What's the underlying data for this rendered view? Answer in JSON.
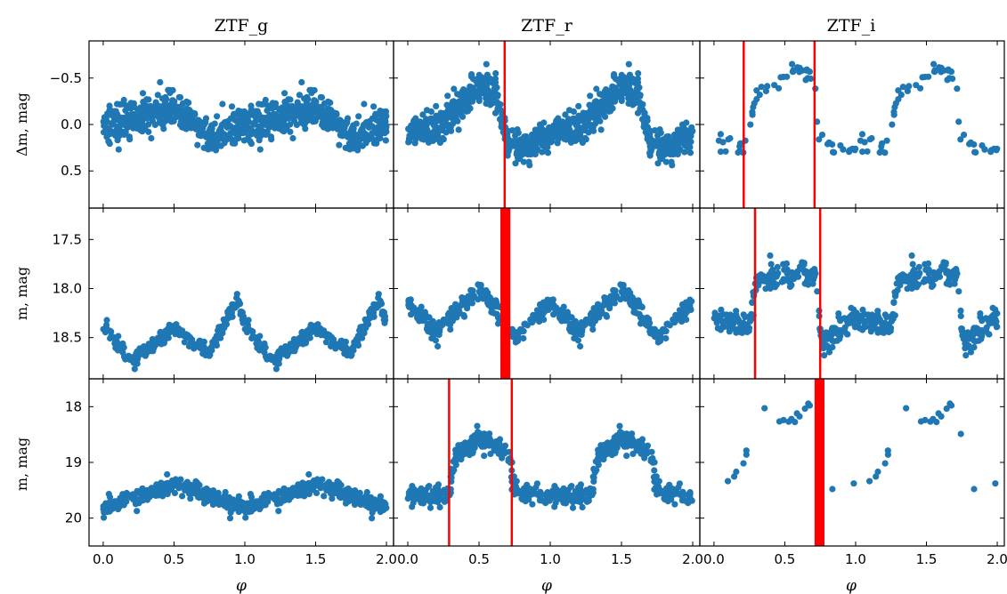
{
  "figure": {
    "columns": [
      "ZTF_g",
      "ZTF_r",
      "ZTF_i"
    ],
    "row_ylabels": [
      "Δm, mag",
      "m, mag",
      "m, mag"
    ],
    "xlabel": "φ"
  },
  "colors": {
    "points": "#1f77b4",
    "marker": "#ff0000",
    "axes": "#000000"
  },
  "chart_data": [
    {
      "type": "scatter",
      "row": 0,
      "col": 0,
      "band": "ZTF_g",
      "xlim": [
        -0.1,
        2.05
      ],
      "ylim": [
        0.9,
        -0.9
      ],
      "y_inverted": true,
      "xticks": [
        0.0,
        0.5,
        1.0,
        1.5,
        2.0
      ],
      "xtick_labels": [
        "0.0",
        "0.5",
        "1.0",
        "1.5",
        "2.0"
      ],
      "yticks": [
        -0.5,
        0.0,
        0.5
      ],
      "ytick_labels": [
        "−0.5",
        "0.0",
        "0.5"
      ],
      "series": [
        {
          "approx_points": 420,
          "phase_knots": [
            0.0,
            0.2,
            0.5,
            0.75,
            1.0
          ],
          "y_knots": [
            0.0,
            -0.05,
            -0.2,
            0.15,
            0.0
          ],
          "scatter": 0.15
        }
      ],
      "markers": []
    },
    {
      "type": "scatter",
      "row": 0,
      "col": 1,
      "band": "ZTF_r",
      "xlim": [
        -0.1,
        2.05
      ],
      "ylim": [
        0.9,
        -0.9
      ],
      "y_inverted": true,
      "xticks": [
        0.0,
        0.5,
        1.0,
        1.5,
        2.0
      ],
      "xtick_labels": [
        "0.0",
        "0.5",
        "1.0",
        "1.5",
        "2.0"
      ],
      "yticks": [
        -0.5,
        0.0,
        0.5
      ],
      "ytick_labels": [
        "−0.5",
        "0.0",
        "0.5"
      ],
      "series": [
        {
          "approx_points": 480,
          "phase_knots": [
            0.0,
            0.15,
            0.3,
            0.5,
            0.62,
            0.7,
            0.85,
            1.0
          ],
          "y_knots": [
            0.1,
            0.05,
            -0.1,
            -0.4,
            -0.35,
            0.2,
            0.25,
            0.1
          ],
          "scatter": 0.15
        }
      ],
      "markers": [
        {
          "type": "line",
          "x": 0.68
        }
      ]
    },
    {
      "type": "scatter",
      "row": 0,
      "col": 2,
      "band": "ZTF_i",
      "xlim": [
        -0.1,
        2.05
      ],
      "ylim": [
        0.9,
        -0.9
      ],
      "y_inverted": true,
      "xticks": [
        0.0,
        0.5,
        1.0,
        1.5,
        2.0
      ],
      "xtick_labels": [
        "0.0",
        "0.5",
        "1.0",
        "1.5",
        "2.0"
      ],
      "yticks": [
        -0.5,
        0.0,
        0.5
      ],
      "ytick_labels": [
        "−0.5",
        "0.0",
        "0.5"
      ],
      "series": [
        {
          "approx_points": 60,
          "phase_knots": [
            0.0,
            0.2,
            0.3,
            0.55,
            0.7,
            0.75,
            1.0
          ],
          "y_knots": [
            0.2,
            0.3,
            -0.3,
            -0.55,
            -0.5,
            0.2,
            0.25
          ],
          "scatter": 0.1
        }
      ],
      "markers": [
        {
          "type": "line",
          "x": 0.21
        },
        {
          "type": "line",
          "x": 0.71
        }
      ]
    },
    {
      "type": "scatter",
      "row": 1,
      "col": 0,
      "band": "ZTF_g",
      "xlim": [
        -0.1,
        2.05
      ],
      "ylim": [
        18.92,
        17.18
      ],
      "y_inverted": true,
      "xticks": [
        0.0,
        0.5,
        1.0,
        1.5,
        2.0
      ],
      "xtick_labels": [
        "0.0",
        "0.5",
        "1.0",
        "1.5",
        "2.0"
      ],
      "yticks": [
        17.5,
        18.0,
        18.5
      ],
      "ytick_labels": [
        "17.5",
        "18.0",
        "18.5"
      ],
      "series": [
        {
          "approx_points": 260,
          "phase_knots": [
            0.0,
            0.2,
            0.5,
            0.75,
            0.95,
            1.0
          ],
          "y_knots": [
            18.35,
            18.75,
            18.4,
            18.65,
            18.1,
            18.35
          ],
          "scatter": 0.06
        }
      ],
      "markers": []
    },
    {
      "type": "scatter",
      "row": 1,
      "col": 1,
      "band": "ZTF_r",
      "xlim": [
        -0.1,
        2.05
      ],
      "ylim": [
        18.92,
        17.18
      ],
      "y_inverted": true,
      "xticks": [
        0.0,
        0.5,
        1.0,
        1.5,
        2.0
      ],
      "xtick_labels": [
        "0.0",
        "0.5",
        "1.0",
        "1.5",
        "2.0"
      ],
      "yticks": [
        17.5,
        18.0,
        18.5
      ],
      "ytick_labels": [
        "17.5",
        "18.0",
        "18.5"
      ],
      "series": [
        {
          "approx_points": 260,
          "phase_knots": [
            0.0,
            0.2,
            0.5,
            0.75,
            1.0
          ],
          "y_knots": [
            18.15,
            18.45,
            18.0,
            18.5,
            18.15
          ],
          "scatter": 0.08
        }
      ],
      "markers": [
        {
          "type": "band",
          "x0": 0.65,
          "x1": 0.72
        }
      ]
    },
    {
      "type": "scatter",
      "row": 1,
      "col": 2,
      "band": "ZTF_i",
      "xlim": [
        -0.1,
        2.05
      ],
      "ylim": [
        18.92,
        17.18
      ],
      "y_inverted": true,
      "xticks": [
        0.0,
        0.5,
        1.0,
        1.5,
        2.0
      ],
      "xtick_labels": [
        "0.0",
        "0.5",
        "1.0",
        "1.5",
        "2.0"
      ],
      "yticks": [
        17.5,
        18.0,
        18.5
      ],
      "ytick_labels": [
        "17.5",
        "18.0",
        "18.5"
      ],
      "series": [
        {
          "approx_points": 260,
          "phase_knots": [
            0.0,
            0.25,
            0.3,
            0.55,
            0.72,
            0.76,
            0.85,
            1.0
          ],
          "y_knots": [
            18.3,
            18.4,
            17.9,
            17.85,
            17.9,
            18.6,
            18.45,
            18.3
          ],
          "scatter": 0.1
        }
      ],
      "markers": [
        {
          "type": "line",
          "x": 0.29
        },
        {
          "type": "line",
          "x": 0.75
        }
      ]
    },
    {
      "type": "scatter",
      "row": 2,
      "col": 0,
      "band": "ZTF_g",
      "xlim": [
        -0.1,
        2.05
      ],
      "ylim": [
        20.5,
        17.5
      ],
      "y_inverted": true,
      "xticks": [
        0.0,
        0.5,
        1.0,
        1.5,
        2.0
      ],
      "xtick_labels": [
        "0.0",
        "0.5",
        "1.0",
        "1.5",
        "2.0"
      ],
      "yticks": [
        18,
        19,
        20
      ],
      "ytick_labels": [
        "18",
        "19",
        "20"
      ],
      "series": [
        {
          "approx_points": 280,
          "phase_knots": [
            0.0,
            0.5,
            1.0
          ],
          "y_knots": [
            19.8,
            19.4,
            19.8
          ],
          "scatter": 0.12
        }
      ],
      "markers": []
    },
    {
      "type": "scatter",
      "row": 2,
      "col": 1,
      "band": "ZTF_r",
      "xlim": [
        -0.1,
        2.05
      ],
      "ylim": [
        20.5,
        17.5
      ],
      "y_inverted": true,
      "xticks": [
        0.0,
        0.5,
        1.0,
        1.5,
        2.0
      ],
      "xtick_labels": [
        "0.0",
        "0.5",
        "1.0",
        "1.5",
        "2.0"
      ],
      "yticks": [
        18,
        19,
        20
      ],
      "ytick_labels": [
        "18",
        "19",
        "20"
      ],
      "series": [
        {
          "approx_points": 280,
          "phase_knots": [
            0.0,
            0.28,
            0.33,
            0.5,
            0.7,
            0.75,
            1.0
          ],
          "y_knots": [
            19.6,
            19.6,
            18.9,
            18.6,
            18.8,
            19.5,
            19.6
          ],
          "scatter": 0.15
        }
      ],
      "markers": [
        {
          "type": "line",
          "x": 0.29
        },
        {
          "type": "line",
          "x": 0.73
        }
      ]
    },
    {
      "type": "scatter",
      "row": 2,
      "col": 2,
      "band": "ZTF_i",
      "xlim": [
        -0.1,
        2.05
      ],
      "ylim": [
        20.5,
        17.5
      ],
      "y_inverted": true,
      "xticks": [
        0.0,
        0.5,
        1.0,
        1.5,
        2.0
      ],
      "xtick_labels": [
        "0.0",
        "0.5",
        "1.0",
        "1.5",
        "2.0"
      ],
      "yticks": [
        18,
        19,
        20
      ],
      "ytick_labels": [
        "18",
        "19",
        "20"
      ],
      "series": [
        {
          "approx_points": 20,
          "phase_knots": [
            0.0,
            0.2,
            0.35,
            0.5,
            0.7,
            0.8,
            1.0
          ],
          "y_knots": [
            19.5,
            19.1,
            18.0,
            18.3,
            17.9,
            19.5,
            19.5
          ],
          "scatter": 0.1
        }
      ],
      "markers": [
        {
          "type": "band",
          "x0": 0.71,
          "x1": 0.78
        }
      ]
    }
  ]
}
